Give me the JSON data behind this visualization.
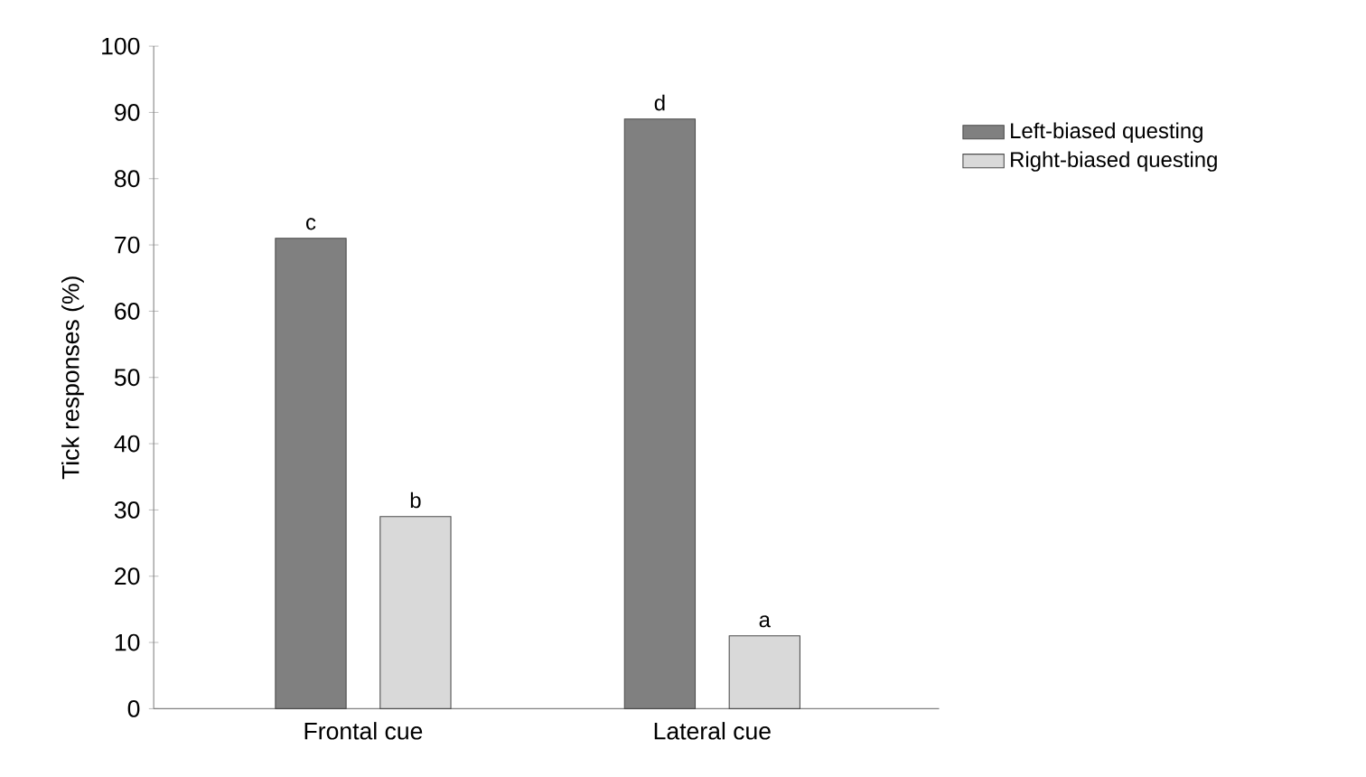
{
  "chart_data": {
    "type": "bar",
    "ylabel": "Tick responses (%)",
    "categories": [
      "Frontal cue",
      "Lateral cue"
    ],
    "series": [
      {
        "name": "Left-biased questing",
        "color": "#808080",
        "values": [
          71,
          89
        ]
      },
      {
        "name": "Right-biased questing",
        "color": "#d9d9d9",
        "values": [
          29,
          11
        ]
      }
    ],
    "ylim": [
      0,
      100
    ],
    "yticks": [
      0,
      10,
      20,
      30,
      40,
      50,
      60,
      70,
      80,
      90,
      100
    ],
    "annotations": [
      "c",
      "b",
      "d",
      "a"
    ],
    "legend": "top right",
    "grid": false
  }
}
